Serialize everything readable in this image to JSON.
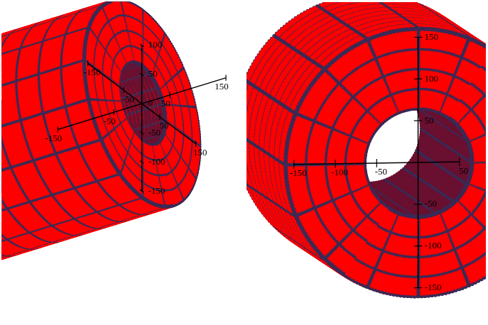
{
  "chart_data": [
    {
      "type": "surface",
      "color": "#ff0000",
      "inner_radius": 65,
      "outer_radius": 160,
      "tube_x": [
        -400,
        0
      ],
      "xlim": [
        -150,
        150
      ],
      "xticks": [
        -150,
        -50,
        50,
        150
      ],
      "ylim": [
        -150,
        150
      ],
      "yticks": [
        -150,
        -50,
        50,
        150
      ],
      "zlim": [
        -150,
        100
      ],
      "zticks": [
        -150,
        -100,
        -50,
        0,
        50,
        100
      ]
    },
    {
      "type": "surface",
      "color": "#ff0000",
      "inner_radius": 65,
      "outer_radius": 160,
      "tube_x": [
        -400,
        0
      ],
      "ylim": [
        -150,
        50
      ],
      "yticks": [
        -150,
        -100,
        -50,
        50
      ],
      "zlim": [
        -150,
        150
      ],
      "zticks": [
        -150,
        -100,
        -50,
        50,
        100,
        150
      ]
    }
  ]
}
